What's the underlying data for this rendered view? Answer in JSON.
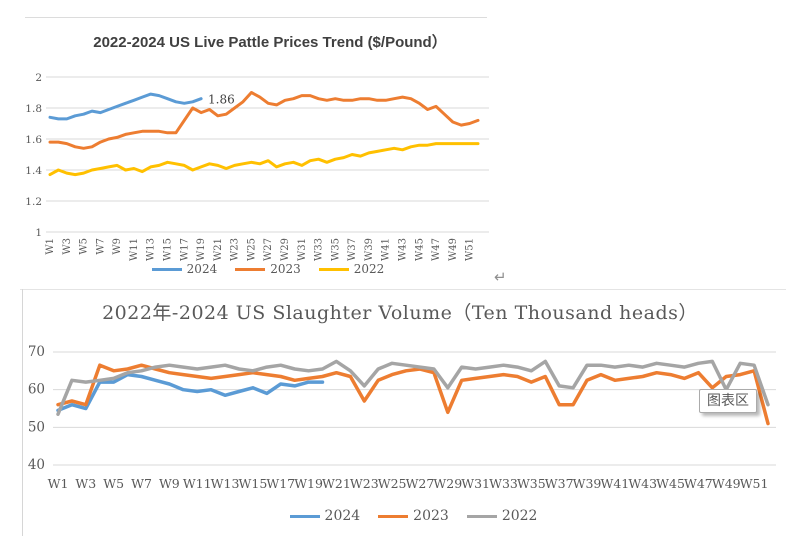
{
  "page": {
    "return_mark": "↵",
    "tooltip": {
      "label": "图表区"
    }
  },
  "chart_data": [
    {
      "type": "line",
      "title": "2022-2024 US Live Pattle Prices Trend ($/Pound）",
      "xlabel": "",
      "ylabel": "",
      "ylim": [
        1,
        2
      ],
      "yticks": [
        "2",
        "1.8",
        "1.6",
        "1.4",
        "1.2",
        "1"
      ],
      "weeks_total": 52,
      "grid": true,
      "legend_position": "bottom",
      "categories": [
        "W1",
        "W3",
        "W5",
        "W7",
        "W9",
        "W11",
        "W13",
        "W15",
        "W17",
        "W19",
        "W21",
        "W23",
        "W25",
        "W27",
        "W29",
        "W31",
        "W33",
        "W35",
        "W37",
        "W39",
        "W41",
        "W43",
        "W45",
        "W47",
        "W49",
        "W51"
      ],
      "series": [
        {
          "name": "2024",
          "color": "#5B9BD5",
          "end_label": "1.86",
          "values": [
            1.74,
            1.73,
            1.73,
            1.75,
            1.76,
            1.78,
            1.77,
            1.79,
            1.81,
            1.83,
            1.85,
            1.87,
            1.89,
            1.88,
            1.86,
            1.84,
            1.83,
            1.84,
            1.86
          ]
        },
        {
          "name": "2023",
          "color": "#ED7D31",
          "values": [
            1.58,
            1.58,
            1.57,
            1.55,
            1.54,
            1.55,
            1.58,
            1.6,
            1.61,
            1.63,
            1.64,
            1.65,
            1.65,
            1.65,
            1.64,
            1.64,
            1.72,
            1.8,
            1.77,
            1.79,
            1.75,
            1.76,
            1.8,
            1.84,
            1.9,
            1.87,
            1.83,
            1.82,
            1.85,
            1.86,
            1.88,
            1.88,
            1.86,
            1.85,
            1.86,
            1.85,
            1.85,
            1.86,
            1.86,
            1.85,
            1.85,
            1.86,
            1.87,
            1.86,
            1.83,
            1.79,
            1.81,
            1.76,
            1.71,
            1.69,
            1.7,
            1.72
          ]
        },
        {
          "name": "2022",
          "color": "#FFC000",
          "values": [
            1.37,
            1.4,
            1.38,
            1.37,
            1.38,
            1.4,
            1.41,
            1.42,
            1.43,
            1.4,
            1.41,
            1.39,
            1.42,
            1.43,
            1.45,
            1.44,
            1.43,
            1.4,
            1.42,
            1.44,
            1.43,
            1.41,
            1.43,
            1.44,
            1.45,
            1.44,
            1.46,
            1.42,
            1.44,
            1.45,
            1.43,
            1.46,
            1.47,
            1.45,
            1.47,
            1.48,
            1.5,
            1.49,
            1.51,
            1.52,
            1.53,
            1.54,
            1.53,
            1.55,
            1.56,
            1.56,
            1.57,
            1.57,
            1.57,
            1.57,
            1.57,
            1.57
          ]
        }
      ]
    },
    {
      "type": "line",
      "title": "2022年-2024 US Slaughter Volume（Ten Thousand heads）",
      "xlabel": "",
      "ylabel": "",
      "ylim": [
        40,
        70
      ],
      "yticks": [
        "70",
        "60",
        "50",
        "40"
      ],
      "weeks_total": 52,
      "grid": true,
      "legend_position": "bottom",
      "categories": [
        "W1",
        "W3",
        "W5",
        "W7",
        "W9",
        "W11",
        "W13",
        "W15",
        "W17",
        "W19",
        "W21",
        "W23",
        "W25",
        "W27",
        "W29",
        "W31",
        "W33",
        "W35",
        "W37",
        "W39",
        "W41",
        "W43",
        "W45",
        "W47",
        "W49",
        "W51"
      ],
      "series": [
        {
          "name": "2024",
          "color": "#5B9BD5",
          "values": [
            54.5,
            56,
            55,
            62,
            62,
            64,
            63.5,
            62.5,
            61.5,
            60,
            59.5,
            60,
            58.5,
            59.5,
            60.5,
            59,
            61.5,
            61,
            62,
            62
          ]
        },
        {
          "name": "2023",
          "color": "#ED7D31",
          "values": [
            56,
            57,
            56,
            66.5,
            65,
            65.5,
            66.5,
            65.5,
            64.5,
            64,
            63.5,
            63,
            63.5,
            64,
            64.5,
            64,
            63.5,
            62.5,
            63,
            63.5,
            64.5,
            63.5,
            57,
            62.5,
            64,
            65,
            65.5,
            64.5,
            54,
            62.5,
            63,
            63.5,
            64,
            63.5,
            62,
            63.5,
            56,
            56,
            62.5,
            64,
            62.5,
            63,
            63.5,
            64.5,
            64,
            63,
            64.5,
            60.5,
            63.5,
            64,
            65,
            51
          ]
        },
        {
          "name": "2022",
          "color": "#A5A5A5",
          "values": [
            53.5,
            62.5,
            62,
            62.5,
            63,
            64.5,
            65,
            66,
            66.5,
            66,
            65.5,
            66,
            66.5,
            65.5,
            65,
            66,
            66.5,
            65.5,
            65,
            65.5,
            67.5,
            65,
            61,
            65.5,
            67,
            66.5,
            66,
            65.5,
            60.5,
            66,
            65.5,
            66,
            66.5,
            66,
            65,
            67.5,
            61,
            60.5,
            66.5,
            66.5,
            66,
            66.5,
            66,
            67,
            66.5,
            66,
            67,
            67.5,
            60,
            67,
            66.5,
            56
          ]
        }
      ]
    }
  ]
}
